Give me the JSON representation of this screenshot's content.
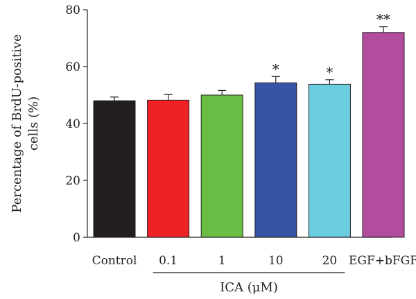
{
  "chart_data": {
    "type": "bar",
    "title": "",
    "ylabel_lines": [
      "Percentage of BrdU-positive",
      "cells (%)"
    ],
    "ylim": [
      0,
      80
    ],
    "yticks": [
      0,
      20,
      40,
      60,
      80
    ],
    "ytick_labels": [
      "0",
      "20",
      "40",
      "60",
      "80"
    ],
    "categories": [
      "Control",
      "0.1",
      "1",
      "10",
      "20",
      "EGF+bFGF"
    ],
    "values": [
      48,
      48.2,
      50,
      54.3,
      53.8,
      72
    ],
    "errors": [
      1.3,
      2.0,
      1.6,
      2.2,
      1.6,
      2.0
    ],
    "significance": [
      "",
      "",
      "",
      "*",
      "*",
      "**"
    ],
    "colors": [
      "#231f20",
      "#ee2225",
      "#6abd45",
      "#3753a4",
      "#6dcde0",
      "#b24d9e"
    ],
    "group": {
      "label": "ICA (μM)",
      "from_category": "0.1",
      "to_category": "20"
    }
  }
}
